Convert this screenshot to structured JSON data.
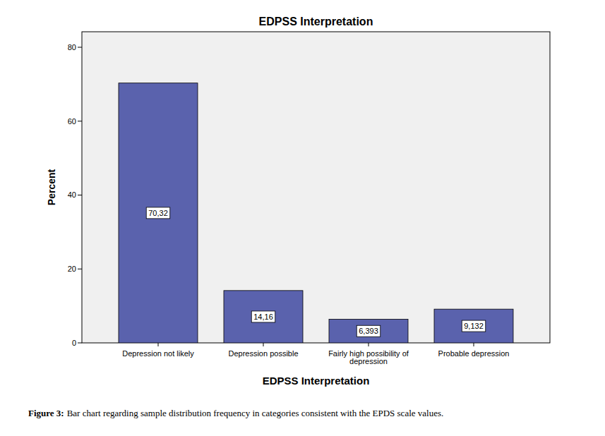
{
  "chart_data": {
    "type": "bar",
    "title": "EDPSS Interpretation",
    "x_label": "EDPSS Interpretation",
    "y_label": "Percent",
    "categories": [
      "Depression not likely",
      "Depression possible",
      "Fairly high possibility of depression",
      "Probable depression"
    ],
    "values": [
      70.32,
      14.16,
      6.393,
      9.132
    ],
    "value_labels": [
      "70,32",
      "14,16",
      "6,393",
      "9,132"
    ],
    "data_labels": true,
    "color": "#5a62ad",
    "ylim": [
      0,
      84.2
    ],
    "yticks": [
      0,
      20,
      40,
      60,
      80
    ],
    "grid": false,
    "caption_label": "Figure 3:",
    "caption": "Bar chart regarding sample distribution frequency in categories consistent with the EPDS scale values."
  }
}
